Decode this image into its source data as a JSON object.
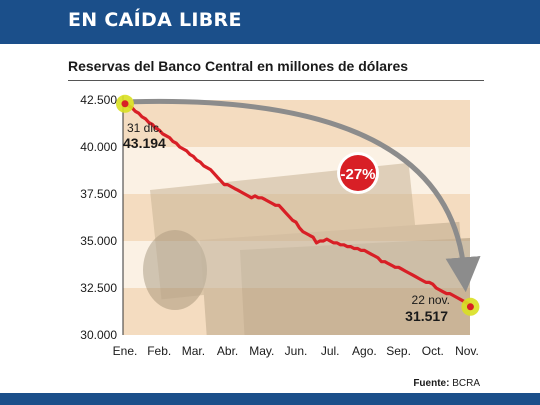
{
  "header": {
    "title": "EN CAÍDA LIBRE"
  },
  "subtitle": "Reservas del Banco Central en millones de dólares",
  "source": {
    "label": "Fuente:",
    "value": "BCRA"
  },
  "colors": {
    "brand_blue": "#1b4f8a",
    "line_red": "#d81f26",
    "marker_yellow": "#d9e021",
    "band": "#f4dcc0",
    "arrow_grey": "#8c8c8c"
  },
  "chart_data": {
    "type": "line",
    "xlabel": "",
    "ylabel": "",
    "categories": [
      "Ene.",
      "Feb.",
      "Mar.",
      "Abr.",
      "May.",
      "Jun.",
      "Jul.",
      "Ago.",
      "Sep.",
      "Oct.",
      "Nov."
    ],
    "yticks": [
      "42.500",
      "40.000",
      "37.500",
      "35.000",
      "32.500",
      "30.000"
    ],
    "ytick_values": [
      42500,
      40000,
      37500,
      35000,
      32500,
      30000
    ],
    "ylim": [
      30000,
      42500
    ],
    "xlim": [
      0,
      10.1
    ],
    "grid": "horizontal bands",
    "series": [
      {
        "x": [
          0,
          0.1,
          0.2,
          0.3,
          0.4,
          0.5,
          0.6,
          0.7,
          0.8,
          0.9,
          1.0,
          1.1,
          1.2,
          1.3,
          1.4,
          1.5,
          1.6,
          1.7,
          1.8,
          1.9,
          2.0,
          2.1,
          2.2,
          2.3,
          2.4,
          2.5,
          2.6,
          2.7,
          2.8,
          2.9,
          3.0,
          3.1,
          3.2,
          3.3,
          3.4,
          3.5,
          3.6,
          3.7,
          3.8,
          3.9,
          4.0,
          4.1,
          4.2,
          4.3,
          4.4,
          4.5,
          4.6,
          4.7,
          4.8,
          4.9,
          5.0,
          5.1,
          5.2,
          5.3,
          5.4,
          5.5,
          5.6,
          5.7,
          5.8,
          5.9,
          6.0,
          6.1,
          6.2,
          6.3,
          6.4,
          6.5,
          6.6,
          6.7,
          6.8,
          6.9,
          7.0,
          7.1,
          7.2,
          7.3,
          7.4,
          7.5,
          7.6,
          7.7,
          7.8,
          7.9,
          8.0,
          8.1,
          8.2,
          8.3,
          8.4,
          8.5,
          8.6,
          8.7,
          8.8,
          8.9,
          9.0,
          9.1,
          9.2,
          9.3,
          9.4,
          9.5,
          9.6,
          9.7,
          9.8,
          9.9,
          10.0,
          10.1
        ],
        "values": [
          42300,
          42200,
          42100,
          41900,
          41800,
          41600,
          41500,
          41300,
          41200,
          41000,
          40900,
          40700,
          40600,
          40500,
          40300,
          40200,
          40000,
          39900,
          39800,
          39600,
          39500,
          39300,
          39200,
          39000,
          38900,
          38800,
          38600,
          38400,
          38200,
          38000,
          38000,
          37900,
          37800,
          37700,
          37600,
          37500,
          37400,
          37300,
          37400,
          37300,
          37300,
          37200,
          37100,
          37000,
          36900,
          36900,
          36700,
          36500,
          36300,
          36100,
          36000,
          35700,
          35500,
          35400,
          35300,
          35200,
          34900,
          35000,
          35000,
          35100,
          35000,
          34900,
          34900,
          34800,
          34800,
          34700,
          34700,
          34600,
          34600,
          34500,
          34500,
          34400,
          34300,
          34200,
          34100,
          33900,
          33900,
          33800,
          33700,
          33600,
          33600,
          33500,
          33400,
          33300,
          33200,
          33100,
          33000,
          32900,
          32800,
          32800,
          32700,
          32500,
          32400,
          32300,
          32200,
          32200,
          32100,
          32000,
          31900,
          31800,
          31700,
          31500
        ]
      }
    ],
    "annotations": [
      {
        "date": "31 dic.",
        "value": "43.194"
      },
      {
        "date": "22 nov.",
        "value": "31.517"
      },
      {
        "change": "-27%"
      }
    ]
  }
}
